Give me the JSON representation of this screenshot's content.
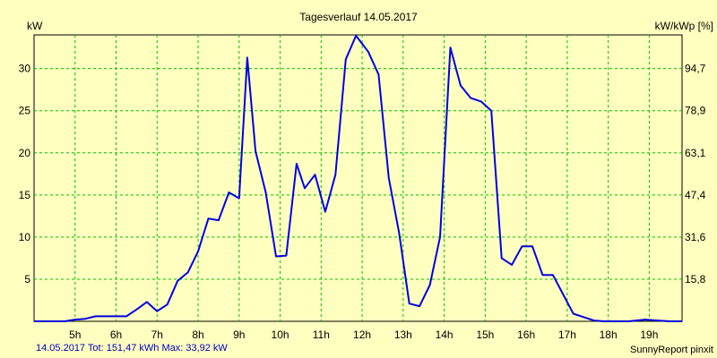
{
  "chart_data": {
    "type": "line",
    "title": "Tagesverlauf 14.05.2017",
    "ylabel_left": "kW",
    "ylabel_right": "kW/kWp [%]",
    "xlim": [
      4.0,
      19.8
    ],
    "ylim": [
      0,
      34
    ],
    "grid": true,
    "x_ticks": [
      5,
      6,
      7,
      8,
      9,
      10,
      11,
      12,
      13,
      14,
      15,
      16,
      17,
      18,
      19
    ],
    "x_tick_labels": [
      "5h",
      "6h",
      "7h",
      "8h",
      "9h",
      "10h",
      "11h",
      "12h",
      "13h",
      "14h",
      "15h",
      "16h",
      "17h",
      "18h",
      "19h"
    ],
    "y_ticks_left": [
      5,
      10,
      15,
      20,
      25,
      30
    ],
    "y_tick_labels_left": [
      "5",
      "10",
      "15",
      "20",
      "25",
      "30"
    ],
    "y_ticks_right": [
      5,
      10,
      15,
      20,
      25,
      30
    ],
    "y_tick_labels_right": [
      "15,8",
      "31,6",
      "47,4",
      "63,1",
      "78,9",
      "94,7"
    ],
    "line_color": "#0000e0",
    "grid_color": "#00c000",
    "series": [
      {
        "name": "kW",
        "x": [
          4.0,
          4.25,
          4.5,
          4.75,
          5.0,
          5.25,
          5.5,
          5.75,
          6.0,
          6.25,
          6.5,
          6.75,
          7.0,
          7.25,
          7.5,
          7.75,
          8.0,
          8.25,
          8.5,
          8.75,
          9.0,
          9.2,
          9.4,
          9.65,
          9.9,
          10.15,
          10.4,
          10.6,
          10.85,
          11.1,
          11.35,
          11.6,
          11.85,
          12.15,
          12.4,
          12.65,
          12.9,
          13.15,
          13.4,
          13.65,
          13.9,
          14.15,
          14.4,
          14.65,
          14.9,
          15.15,
          15.4,
          15.65,
          15.9,
          16.15,
          16.4,
          16.65,
          16.9,
          17.15,
          17.4,
          17.65,
          17.9,
          18.15,
          18.5,
          18.9,
          19.2,
          19.5,
          19.8
        ],
        "values": [
          0,
          0,
          0,
          0,
          0.2,
          0.3,
          0.6,
          0.6,
          0.6,
          0.6,
          1.4,
          2.3,
          1.2,
          2.0,
          4.8,
          5.8,
          8.3,
          12.2,
          12.0,
          15.3,
          14.6,
          31.3,
          20.2,
          15.3,
          7.7,
          7.8,
          18.7,
          15.8,
          17.4,
          13.0,
          17.4,
          31.1,
          33.9,
          32.0,
          29.3,
          17.0,
          10.5,
          2.1,
          1.8,
          4.3,
          10.0,
          32.5,
          28.0,
          26.5,
          26.1,
          25.0,
          7.5,
          6.7,
          8.9,
          8.9,
          5.5,
          5.5,
          3.2,
          0.9,
          0.5,
          0.1,
          0,
          0,
          0,
          0.2,
          0.1,
          0,
          0
        ]
      }
    ]
  },
  "footer": {
    "summary": "14.05.2017 Tot: 151,47 kWh Max: 33,92 kW",
    "brand": "SunnyReport pinxit"
  }
}
